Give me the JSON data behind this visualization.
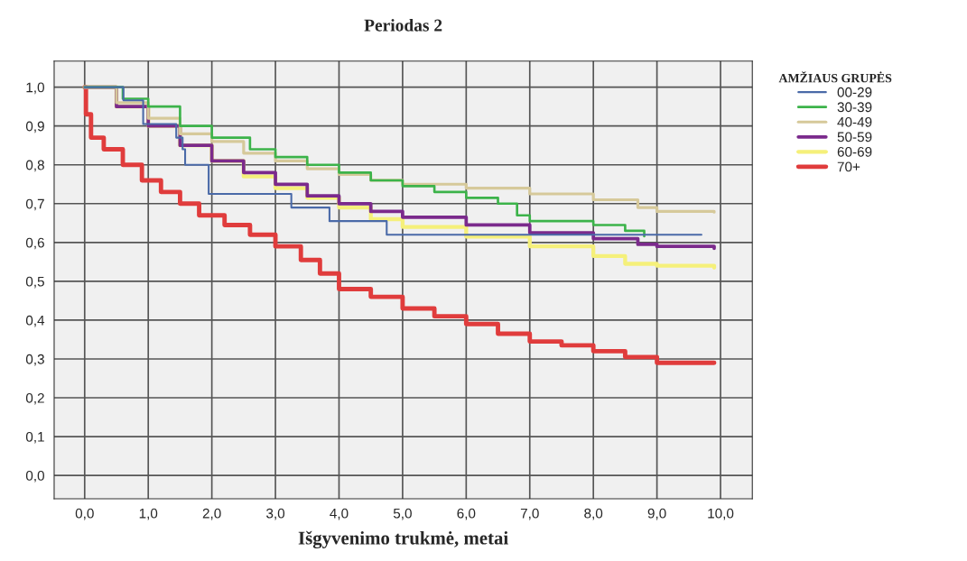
{
  "chart_data": {
    "type": "step",
    "title": "Periodas 2",
    "xlabel": "Išgyvenimo trukmė, metai",
    "legend_title": "AMŽIAUS GRUPĖS",
    "xlim": [
      -0.48,
      10.5
    ],
    "ylim": [
      -0.06,
      1.067
    ],
    "xticks": [
      {
        "value": 0,
        "label": "0,0"
      },
      {
        "value": 1,
        "label": "1,0"
      },
      {
        "value": 2,
        "label": "2,0"
      },
      {
        "value": 3,
        "label": "3,0"
      },
      {
        "value": 4,
        "label": "4,0"
      },
      {
        "value": 5,
        "label": "5,0"
      },
      {
        "value": 6,
        "label": "6,0"
      },
      {
        "value": 7,
        "label": "7,0"
      },
      {
        "value": 8,
        "label": "8,0"
      },
      {
        "value": 9,
        "label": "9,0"
      },
      {
        "value": 10,
        "label": "10,0"
      }
    ],
    "yticks": [
      {
        "value": 0,
        "label": "0,0"
      },
      {
        "value": 0.1,
        "label": "0,1"
      },
      {
        "value": 0.2,
        "label": "0,2"
      },
      {
        "value": 0.3,
        "label": "0,3"
      },
      {
        "value": 0.4,
        "label": "0,4"
      },
      {
        "value": 0.5,
        "label": "0,5"
      },
      {
        "value": 0.6,
        "label": "0,6"
      },
      {
        "value": 0.7,
        "label": "0,7"
      },
      {
        "value": 0.8,
        "label": "0,8"
      },
      {
        "value": 0.9,
        "label": "0,9"
      },
      {
        "value": 1,
        "label": "1,0"
      }
    ],
    "grid": true,
    "legend": "top right",
    "series": [
      {
        "name": "00-29",
        "color": "#4a6aa8",
        "x": [
          0,
          0.61,
          0.92,
          1.44,
          1.54,
          1.58,
          1.95,
          3.25,
          3.85,
          4.75,
          9.7
        ],
        "values": [
          1.0,
          0.966,
          0.905,
          0.87,
          0.84,
          0.8,
          0.725,
          0.69,
          0.655,
          0.62,
          0.62
        ]
      },
      {
        "name": "30-39",
        "color": "#3cb34a",
        "x": [
          0,
          0.6,
          1.0,
          1.5,
          2.0,
          2.6,
          3.0,
          3.5,
          4.0,
          4.5,
          5.0,
          5.5,
          6.0,
          6.5,
          6.8,
          7.0,
          8.0,
          8.5,
          8.8
        ],
        "values": [
          1.0,
          0.97,
          0.95,
          0.9,
          0.87,
          0.84,
          0.82,
          0.8,
          0.78,
          0.76,
          0.745,
          0.73,
          0.715,
          0.7,
          0.67,
          0.655,
          0.645,
          0.63,
          0.616
        ]
      },
      {
        "name": "40-49",
        "color": "#d6c99a",
        "x": [
          0,
          0.5,
          1.0,
          1.5,
          2.0,
          2.5,
          3.0,
          3.5,
          4.0,
          4.5,
          5.0,
          6.0,
          7.0,
          8.0,
          8.7,
          9.0,
          9.9
        ],
        "values": [
          1.0,
          0.96,
          0.92,
          0.88,
          0.86,
          0.83,
          0.81,
          0.79,
          0.775,
          0.76,
          0.75,
          0.74,
          0.725,
          0.71,
          0.69,
          0.68,
          0.678
        ]
      },
      {
        "name": "50-59",
        "color": "#7b2a8c",
        "x": [
          0,
          0.5,
          1.0,
          1.5,
          2.0,
          2.5,
          3.0,
          3.5,
          4.0,
          4.5,
          5.0,
          6.0,
          7.0,
          8.0,
          8.7,
          9.0,
          9.9
        ],
        "values": [
          1.0,
          0.95,
          0.9,
          0.85,
          0.81,
          0.78,
          0.75,
          0.72,
          0.7,
          0.68,
          0.665,
          0.645,
          0.625,
          0.61,
          0.595,
          0.59,
          0.585
        ]
      },
      {
        "name": "60-69",
        "color": "#f5f07a",
        "x": [
          0,
          0.5,
          1.0,
          1.5,
          2.0,
          2.5,
          3.0,
          3.5,
          4.0,
          4.5,
          5.0,
          6.0,
          7.0,
          8.0,
          8.5,
          9.0,
          9.9
        ],
        "values": [
          1.0,
          0.95,
          0.9,
          0.85,
          0.81,
          0.77,
          0.74,
          0.715,
          0.69,
          0.66,
          0.64,
          0.615,
          0.59,
          0.565,
          0.545,
          0.54,
          0.535
        ]
      },
      {
        "name": "70+",
        "color": "#e03c3c",
        "x": [
          0,
          0.02,
          0.1,
          0.3,
          0.6,
          0.9,
          1.2,
          1.5,
          1.8,
          2.2,
          2.6,
          3.0,
          3.4,
          3.7,
          4.0,
          4.5,
          5.0,
          5.5,
          6.0,
          6.5,
          7.0,
          7.5,
          8.0,
          8.5,
          9.0,
          9.9
        ],
        "values": [
          1.0,
          0.93,
          0.87,
          0.84,
          0.8,
          0.76,
          0.73,
          0.7,
          0.67,
          0.645,
          0.62,
          0.59,
          0.555,
          0.52,
          0.48,
          0.46,
          0.43,
          0.41,
          0.39,
          0.365,
          0.345,
          0.335,
          0.32,
          0.305,
          0.29,
          0.29
        ]
      }
    ]
  }
}
